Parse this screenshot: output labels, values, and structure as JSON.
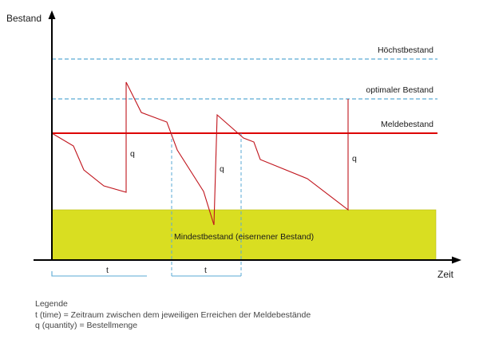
{
  "axes": {
    "y_label": "Bestand",
    "x_label": "Zeit"
  },
  "levels": {
    "hoechstbestand": "Höchstbestand",
    "optimaler_bestand": "optimaler Bestand",
    "meldebestand": "Meldebestand",
    "mindestbestand": "Mindestbestand (eisernener Bestand)"
  },
  "markers": {
    "q": "q",
    "t": "t"
  },
  "legend": {
    "title": "Legende",
    "t_line": "t (time) = Zeitraum zwischen dem jeweiligen Erreichen der Meldebestände",
    "q_line": "q (quantity) = Bestellmenge"
  },
  "colors": {
    "stock_line": "#c0141c",
    "reorder_line": "#dd0000",
    "dashed_levels": "#5aaad4",
    "safety_band": "#d9de21",
    "axis": "#000000"
  }
}
